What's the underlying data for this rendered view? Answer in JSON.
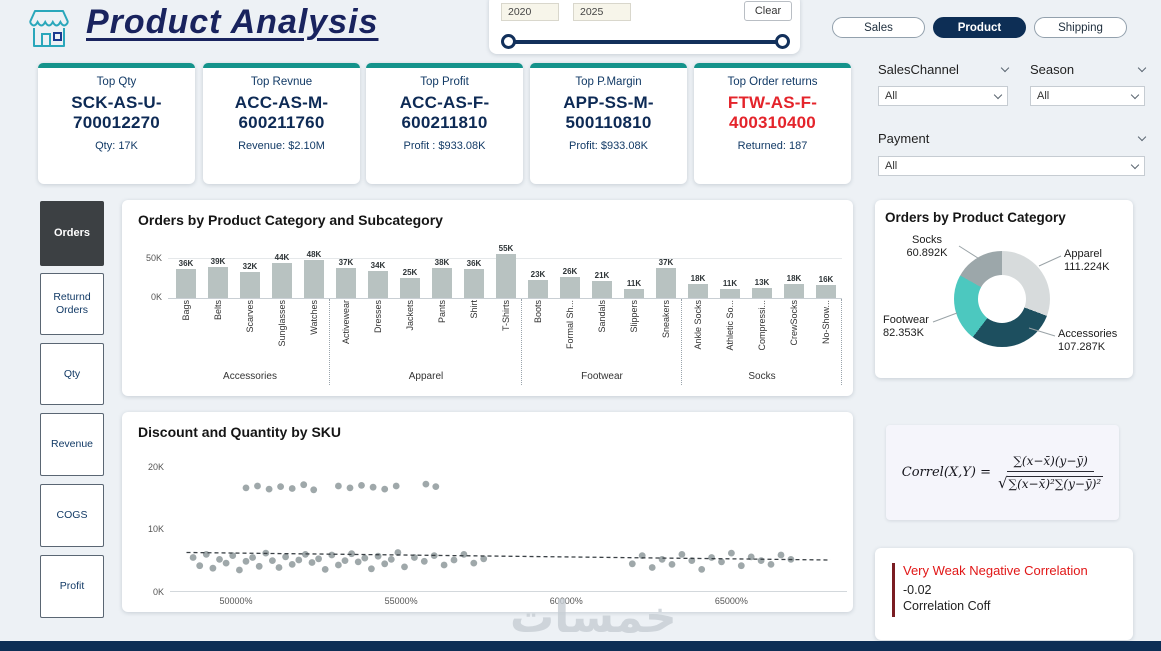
{
  "theme": {
    "accent_teal": "#14938b",
    "navy": "#0d2e55",
    "red_alert": "#e11717",
    "page_bg": "#edf1f5"
  },
  "header": {
    "title": "Product Analysis",
    "range": {
      "from": "2020",
      "to": "2025",
      "clear_label": "Clear"
    },
    "nav": [
      {
        "label": "Sales",
        "active": false
      },
      {
        "label": "Product",
        "active": true
      },
      {
        "label": "Shipping",
        "active": false
      }
    ]
  },
  "kpis": [
    {
      "title": "Top Qty",
      "line1": "SCK-AS-U-",
      "line2": "700012270",
      "sub": "Qty: 17K",
      "highlight": false
    },
    {
      "title": "Top Revnue",
      "line1": "ACC-AS-M-",
      "line2": "600211760",
      "sub": "Revenue: $2.10M",
      "highlight": false
    },
    {
      "title": "Top Profit",
      "line1": "ACC-AS-F-",
      "line2": "600211810",
      "sub": "Profit : $933.08K",
      "highlight": false
    },
    {
      "title": "Top P.Margin",
      "line1": "APP-SS-M-",
      "line2": "500110810",
      "sub": "Profit: $933.08K",
      "highlight": false
    },
    {
      "title": "Top Order returns",
      "line1": "FTW-AS-F-",
      "line2": "400310400",
      "sub": "Returned: 187",
      "highlight": true
    }
  ],
  "filters": [
    {
      "label": "SalesChannel",
      "value": "All"
    },
    {
      "label": "Season",
      "value": "All"
    },
    {
      "label": "Payment",
      "value": "All"
    }
  ],
  "sidebar": [
    {
      "label": "Orders",
      "active": true
    },
    {
      "label": "Returnd Orders",
      "active": false
    },
    {
      "label": "Qty",
      "active": false
    },
    {
      "label": "Revenue",
      "active": false
    },
    {
      "label": "COGS",
      "active": false
    },
    {
      "label": "Profit",
      "active": false
    }
  ],
  "chart_data": [
    {
      "type": "bar",
      "title": "Orders by Product Category and Subcategory",
      "unit": "K",
      "ylim": [
        0,
        55
      ],
      "y_gridline": 50,
      "y_tick_labels": [
        "50K",
        "0K"
      ],
      "bar_color": "#b8c2c1",
      "groups": [
        {
          "name": "Accessories",
          "items": [
            [
              "Bags",
              36
            ],
            [
              "Belts",
              39
            ],
            [
              "Scarves",
              32
            ],
            [
              "Sunglasses",
              44
            ],
            [
              "Watches",
              48
            ]
          ]
        },
        {
          "name": "Apparel",
          "items": [
            [
              "Activewear",
              37
            ],
            [
              "Dresses",
              34
            ],
            [
              "Jackets",
              25
            ],
            [
              "Pants",
              38
            ],
            [
              "Shirt",
              36
            ],
            [
              "T-Shirts",
              55
            ]
          ]
        },
        {
          "name": "Footwear",
          "items": [
            [
              "Boots",
              23
            ],
            [
              "Formal Sh...",
              26
            ],
            [
              "Sandals",
              21
            ],
            [
              "Slippers",
              11
            ],
            [
              "Sneakers",
              37
            ]
          ]
        },
        {
          "name": "Socks",
          "items": [
            [
              "Ankle Socks",
              18
            ],
            [
              "Athletic So...",
              11
            ],
            [
              "Compressi...",
              13
            ],
            [
              "CrewSocks",
              18
            ],
            [
              "No-Show...",
              16
            ]
          ]
        }
      ]
    },
    {
      "type": "pie",
      "title": "Orders by Product Category",
      "slices": [
        {
          "label": "Apparel",
          "value": 111.224,
          "display": "111.224K",
          "color": "#d7dbdc"
        },
        {
          "label": "Accessories",
          "value": 107.287,
          "display": "107.287K",
          "color": "#1d4f5f"
        },
        {
          "label": "Footwear",
          "value": 82.353,
          "display": "82.353K",
          "color": "#4cc8bf"
        },
        {
          "label": "Socks",
          "value": 60.892,
          "display": "60.892K",
          "color": "#9ca7aa"
        }
      ]
    },
    {
      "type": "scatter",
      "title": "Discount and Quantity by SKU",
      "xlim": [
        48000,
        68500
      ],
      "ylim": [
        0,
        22
      ],
      "x_ticks": [
        {
          "v": 50000,
          "label": "50000%"
        },
        {
          "v": 55000,
          "label": "55000%"
        },
        {
          "v": 60000,
          "label": "60000%"
        },
        {
          "v": 65000,
          "label": "65000%"
        }
      ],
      "y_ticks": [
        {
          "v": 0,
          "label": "0K"
        },
        {
          "v": 10,
          "label": "10K"
        },
        {
          "v": 20,
          "label": "20K"
        }
      ],
      "point_color": "#8e999b",
      "trend_color": "#3a4045",
      "trendline": {
        "x1": 48500,
        "y1": 6.3,
        "x2": 68000,
        "y2": 5.1
      },
      "points": [
        [
          50300,
          16.6
        ],
        [
          50650,
          16.9
        ],
        [
          51000,
          16.4
        ],
        [
          51350,
          16.8
        ],
        [
          51700,
          16.5
        ],
        [
          52050,
          17.1
        ],
        [
          52350,
          16.3
        ],
        [
          53100,
          16.9
        ],
        [
          53450,
          16.6
        ],
        [
          53800,
          17.0
        ],
        [
          54150,
          16.7
        ],
        [
          54500,
          16.4
        ],
        [
          54850,
          16.9
        ],
        [
          55750,
          17.2
        ],
        [
          56050,
          16.8
        ],
        [
          48700,
          5.5
        ],
        [
          48900,
          4.2
        ],
        [
          49100,
          6.0
        ],
        [
          49300,
          3.8
        ],
        [
          49500,
          5.2
        ],
        [
          49700,
          4.6
        ],
        [
          49900,
          5.8
        ],
        [
          50100,
          3.5
        ],
        [
          50300,
          4.9
        ],
        [
          50500,
          5.5
        ],
        [
          50700,
          4.1
        ],
        [
          50900,
          6.2
        ],
        [
          51100,
          5.0
        ],
        [
          51300,
          3.9
        ],
        [
          51500,
          5.6
        ],
        [
          51700,
          4.4
        ],
        [
          51900,
          5.1
        ],
        [
          52100,
          6.0
        ],
        [
          52300,
          4.7
        ],
        [
          52500,
          5.3
        ],
        [
          52700,
          3.6
        ],
        [
          52900,
          5.9
        ],
        [
          53100,
          4.3
        ],
        [
          53300,
          5.0
        ],
        [
          53500,
          6.1
        ],
        [
          53700,
          4.8
        ],
        [
          53900,
          5.4
        ],
        [
          54100,
          3.7
        ],
        [
          54300,
          5.7
        ],
        [
          54500,
          4.5
        ],
        [
          54700,
          5.2
        ],
        [
          54900,
          6.3
        ],
        [
          55100,
          4.0
        ],
        [
          55400,
          5.5
        ],
        [
          55700,
          4.9
        ],
        [
          56000,
          5.8
        ],
        [
          56300,
          4.3
        ],
        [
          56600,
          5.1
        ],
        [
          56900,
          6.0
        ],
        [
          57200,
          4.6
        ],
        [
          57500,
          5.3
        ],
        [
          62000,
          4.5
        ],
        [
          62300,
          5.8
        ],
        [
          62600,
          3.9
        ],
        [
          62900,
          5.2
        ],
        [
          63200,
          4.4
        ],
        [
          63500,
          6.0
        ],
        [
          63800,
          5.0
        ],
        [
          64100,
          3.6
        ],
        [
          64400,
          5.5
        ],
        [
          64700,
          4.8
        ],
        [
          65000,
          6.2
        ],
        [
          65300,
          4.2
        ],
        [
          65600,
          5.6
        ],
        [
          65900,
          5.0
        ],
        [
          66200,
          4.4
        ],
        [
          66500,
          5.9
        ],
        [
          66800,
          5.2
        ]
      ]
    }
  ],
  "formula": {
    "lhs": "Correl(X,Y) =",
    "numerator": "∑(x−x̄)(y−ȳ)",
    "sqrt_symbol": "√",
    "radical": "∑(x−x̄)²∑(y−ȳ)²"
  },
  "correlation": {
    "headline": "Very Weak Negative Correlation",
    "value": "-0.02",
    "label": "Correlation Coff"
  },
  "watermark": "خمسات"
}
